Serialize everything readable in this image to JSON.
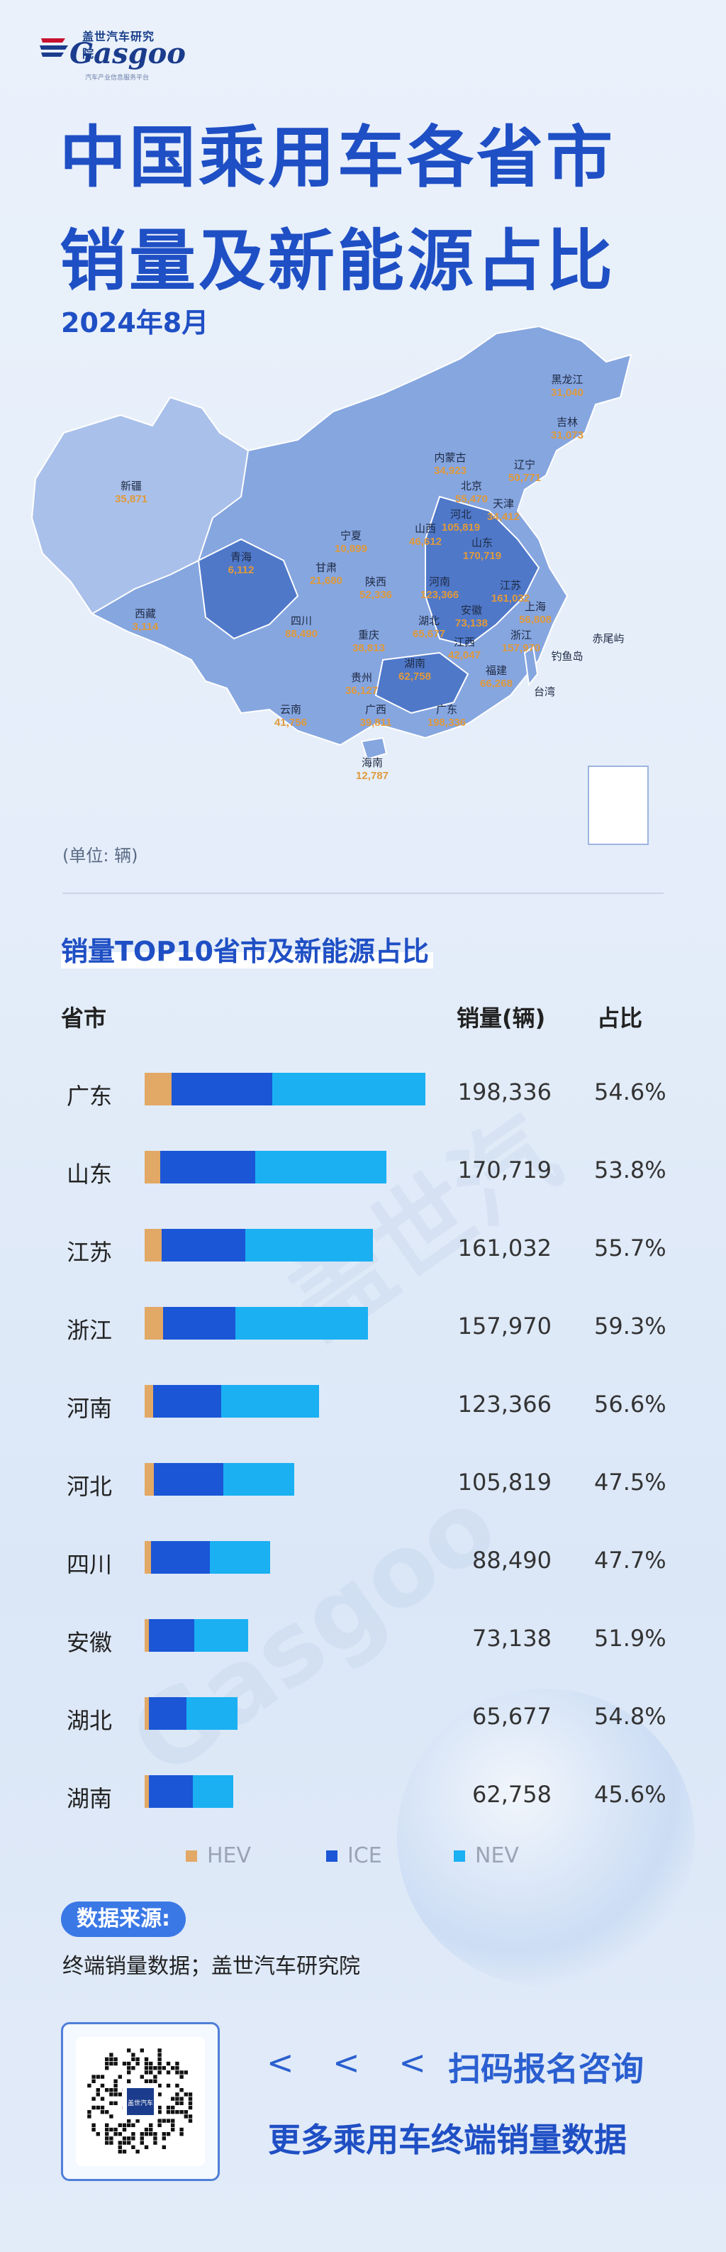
{
  "brand": {
    "cn": "盖世汽车研究院",
    "en": "Gasgoo",
    "slogan": "汽车产业信息服务平台"
  },
  "title_lines": [
    "中国乘用车各省市",
    "销量及新能源占比"
  ],
  "date": "2024年8月",
  "unit": "(单位: 辆)",
  "watermarks": [
    "盖世汽",
    "Gasgoo"
  ],
  "map": {
    "labels": [
      {
        "name": "黑龙江",
        "value": "31,040"
      },
      {
        "name": "吉林",
        "value": "31,073"
      },
      {
        "name": "辽宁",
        "value": "50,771"
      },
      {
        "name": "内蒙古",
        "value": "34,923"
      },
      {
        "name": "北京",
        "value": "55,470"
      },
      {
        "name": "天津",
        "value": "34,412"
      },
      {
        "name": "河北",
        "value": "105,819"
      },
      {
        "name": "山西",
        "value": "46,612"
      },
      {
        "name": "山东",
        "value": "170,719"
      },
      {
        "name": "新疆",
        "value": "35,871"
      },
      {
        "name": "宁夏",
        "value": "10,899"
      },
      {
        "name": "青海",
        "value": "6,112"
      },
      {
        "name": "甘肃",
        "value": "21,680"
      },
      {
        "name": "陕西",
        "value": "52,336"
      },
      {
        "name": "河南",
        "value": "123,366"
      },
      {
        "name": "江苏",
        "value": "161,032"
      },
      {
        "name": "安徽",
        "value": "73,138"
      },
      {
        "name": "上海",
        "value": "56,808"
      },
      {
        "name": "西藏",
        "value": "3,114"
      },
      {
        "name": "四川",
        "value": "88,490"
      },
      {
        "name": "重庆",
        "value": "38,813"
      },
      {
        "name": "湖北",
        "value": "65,677"
      },
      {
        "name": "浙江",
        "value": "157,970"
      },
      {
        "name": "江西",
        "value": "42,047"
      },
      {
        "name": "湖南",
        "value": "62,758"
      },
      {
        "name": "贵州",
        "value": "36,127"
      },
      {
        "name": "福建",
        "value": "66,268"
      },
      {
        "name": "云南",
        "value": "41,756"
      },
      {
        "name": "广西",
        "value": "39,811"
      },
      {
        "name": "广东",
        "value": "198,336"
      },
      {
        "name": "海南",
        "value": "12,787"
      },
      {
        "name": "台湾",
        "value": ""
      },
      {
        "name": "钓鱼岛",
        "value": ""
      },
      {
        "name": "赤尾屿",
        "value": ""
      }
    ]
  },
  "section_title": "销量TOP10省市及新能源占比",
  "columns": {
    "province": "省市",
    "sales": "销量(辆)",
    "share": "占比"
  },
  "colors": {
    "HEV": "#e2a866",
    "ICE": "#1a56d6",
    "NEV": "#1ab0f2",
    "title": "#1f4fc4"
  },
  "chart_data": {
    "type": "bar",
    "orientation": "horizontal",
    "stacked": true,
    "title": "销量TOP10省市及新能源占比",
    "categories": [
      "广东",
      "山东",
      "江苏",
      "浙江",
      "河南",
      "河北",
      "四川",
      "安徽",
      "湖北",
      "湖南"
    ],
    "totals": [
      198336,
      170719,
      161032,
      157970,
      123366,
      105819,
      88490,
      73138,
      65677,
      62758
    ],
    "totals_text": [
      "198,336",
      "170,719",
      "161,032",
      "157,970",
      "123,366",
      "105,819",
      "88,490",
      "73,138",
      "65,677",
      "62,758"
    ],
    "nev_share_text": [
      "54.6%",
      "53.8%",
      "55.7%",
      "59.3%",
      "56.6%",
      "47.5%",
      "47.7%",
      "51.9%",
      "54.8%",
      "45.6%"
    ],
    "series": [
      {
        "name": "HEV",
        "values": [
          19000,
          11000,
          12000,
          13000,
          6000,
          6500,
          4300,
          3100,
          3000,
          3000
        ]
      },
      {
        "name": "ICE",
        "values": [
          71000,
          67000,
          59000,
          51000,
          48000,
          49000,
          42000,
          32000,
          26700,
          31000
        ]
      },
      {
        "name": "NEV",
        "values": [
          108336,
          92719,
          90032,
          93970,
          69366,
          50319,
          42190,
          38038,
          35977,
          28758
        ]
      }
    ],
    "legend": [
      "HEV",
      "ICE",
      "NEV"
    ],
    "legend_position": "bottom"
  },
  "source": {
    "label": "数据来源:",
    "text": "终端销量数据；盖世汽车研究院"
  },
  "cta": {
    "arrows": "< < <",
    "line1": "扫码报名咨询",
    "line2": "更多乘用车终端销量数据"
  },
  "qr": {
    "caption": "盖世汽车"
  }
}
